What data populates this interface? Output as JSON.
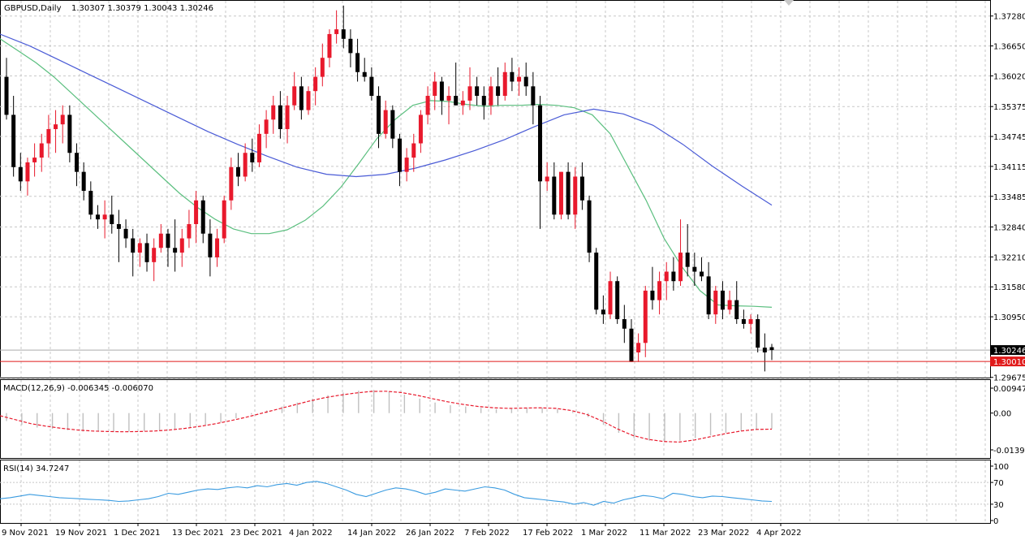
{
  "header": {
    "symbol_label": "GBPUSD,Daily",
    "ohlc_text": "1.30307 1.30379 1.30043 1.30246"
  },
  "macd_panel": {
    "label": "MACD(12,26,9) -0.006345 -0.006070"
  },
  "rsi_panel": {
    "label": "RSI(14) 34.7247"
  },
  "chart_data": {
    "type": "candlestick",
    "title": "GBPUSD,Daily",
    "x_tick_labels": [
      "9 Nov 2021",
      "19 Nov 2021",
      "1 Dec 2021",
      "13 Dec 2021",
      "23 Dec 2021",
      "4 Jan 2022",
      "14 Jan 2022",
      "26 Jan 2022",
      "7 Feb 2022",
      "17 Feb 2022",
      "1 Mar 2022",
      "11 Mar 2022",
      "23 Mar 2022",
      "4 Apr 2022"
    ],
    "price_axis": {
      "ylim": [
        1.2967,
        1.376
      ],
      "tick_labels": [
        "1.37280",
        "1.36650",
        "1.36020",
        "1.35375",
        "1.34745",
        "1.34115",
        "1.33485",
        "1.32840",
        "1.32210",
        "1.31580",
        "1.30950",
        "1.29675"
      ],
      "current_price_tag": "1.30246",
      "horizontal_line_tag": "1.30010",
      "horizontal_line_value": 1.3001
    },
    "candles_ohlc": [
      [
        1.36,
        1.364,
        1.351,
        1.352
      ],
      [
        1.352,
        1.356,
        1.339,
        1.341
      ],
      [
        1.341,
        1.344,
        1.336,
        1.338
      ],
      [
        1.338,
        1.343,
        1.335,
        1.342
      ],
      [
        1.342,
        1.346,
        1.339,
        1.343
      ],
      [
        1.343,
        1.348,
        1.34,
        1.346
      ],
      [
        1.346,
        1.352,
        1.343,
        1.349
      ],
      [
        1.349,
        1.353,
        1.344,
        1.35
      ],
      [
        1.35,
        1.354,
        1.346,
        1.352
      ],
      [
        1.352,
        1.354,
        1.342,
        1.344
      ],
      [
        1.344,
        1.346,
        1.337,
        1.34
      ],
      [
        1.34,
        1.342,
        1.334,
        1.336
      ],
      [
        1.336,
        1.338,
        1.33,
        1.331
      ],
      [
        1.331,
        1.333,
        1.328,
        1.33
      ],
      [
        1.33,
        1.334,
        1.326,
        1.331
      ],
      [
        1.331,
        1.335,
        1.327,
        1.329
      ],
      [
        1.329,
        1.332,
        1.321,
        1.328
      ],
      [
        1.328,
        1.33,
        1.324,
        1.326
      ],
      [
        1.326,
        1.328,
        1.318,
        1.323
      ],
      [
        1.323,
        1.326,
        1.32,
        1.325
      ],
      [
        1.325,
        1.327,
        1.319,
        1.321
      ],
      [
        1.321,
        1.326,
        1.317,
        1.324
      ],
      [
        1.324,
        1.329,
        1.323,
        1.327
      ],
      [
        1.327,
        1.328,
        1.32,
        1.324
      ],
      [
        1.324,
        1.33,
        1.319,
        1.323
      ],
      [
        1.323,
        1.328,
        1.32,
        1.326
      ],
      [
        1.326,
        1.332,
        1.324,
        1.329
      ],
      [
        1.329,
        1.336,
        1.325,
        1.334
      ],
      [
        1.334,
        1.335,
        1.325,
        1.327
      ],
      [
        1.327,
        1.33,
        1.318,
        1.322
      ],
      [
        1.322,
        1.328,
        1.32,
        1.326
      ],
      [
        1.326,
        1.335,
        1.325,
        1.334
      ],
      [
        1.334,
        1.343,
        1.332,
        1.341
      ],
      [
        1.341,
        1.344,
        1.337,
        1.339
      ],
      [
        1.339,
        1.346,
        1.338,
        1.344
      ],
      [
        1.344,
        1.347,
        1.34,
        1.342
      ],
      [
        1.342,
        1.35,
        1.341,
        1.348
      ],
      [
        1.348,
        1.353,
        1.345,
        1.351
      ],
      [
        1.351,
        1.356,
        1.348,
        1.354
      ],
      [
        1.354,
        1.357,
        1.347,
        1.349
      ],
      [
        1.349,
        1.356,
        1.346,
        1.354
      ],
      [
        1.354,
        1.361,
        1.353,
        1.358
      ],
      [
        1.358,
        1.36,
        1.351,
        1.353
      ],
      [
        1.353,
        1.358,
        1.352,
        1.357
      ],
      [
        1.357,
        1.362,
        1.354,
        1.36
      ],
      [
        1.36,
        1.367,
        1.358,
        1.364
      ],
      [
        1.364,
        1.37,
        1.362,
        1.369
      ],
      [
        1.369,
        1.374,
        1.367,
        1.37
      ],
      [
        1.37,
        1.375,
        1.366,
        1.368
      ],
      [
        1.368,
        1.37,
        1.362,
        1.365
      ],
      [
        1.365,
        1.368,
        1.359,
        1.361
      ],
      [
        1.361,
        1.364,
        1.359,
        1.36
      ],
      [
        1.36,
        1.362,
        1.355,
        1.356
      ],
      [
        1.356,
        1.358,
        1.345,
        1.348
      ],
      [
        1.348,
        1.355,
        1.347,
        1.353
      ],
      [
        1.353,
        1.354,
        1.345,
        1.347
      ],
      [
        1.347,
        1.348,
        1.337,
        1.34
      ],
      [
        1.34,
        1.345,
        1.338,
        1.343
      ],
      [
        1.343,
        1.348,
        1.34,
        1.346
      ],
      [
        1.346,
        1.353,
        1.344,
        1.352
      ],
      [
        1.352,
        1.358,
        1.35,
        1.356
      ],
      [
        1.356,
        1.361,
        1.353,
        1.359
      ],
      [
        1.359,
        1.36,
        1.352,
        1.355
      ],
      [
        1.355,
        1.358,
        1.35,
        1.356
      ],
      [
        1.356,
        1.363,
        1.354,
        1.354
      ],
      [
        1.354,
        1.357,
        1.352,
        1.355
      ],
      [
        1.355,
        1.362,
        1.353,
        1.358
      ],
      [
        1.358,
        1.36,
        1.354,
        1.356
      ],
      [
        1.356,
        1.358,
        1.351,
        1.354
      ],
      [
        1.354,
        1.36,
        1.352,
        1.358
      ],
      [
        1.358,
        1.362,
        1.354,
        1.356
      ],
      [
        1.356,
        1.363,
        1.355,
        1.361
      ],
      [
        1.361,
        1.364,
        1.357,
        1.359
      ],
      [
        1.359,
        1.362,
        1.356,
        1.36
      ],
      [
        1.36,
        1.363,
        1.356,
        1.358
      ],
      [
        1.358,
        1.361,
        1.35,
        1.354
      ],
      [
        1.354,
        1.356,
        1.328,
        1.338
      ],
      [
        1.338,
        1.342,
        1.336,
        1.339
      ],
      [
        1.339,
        1.342,
        1.33,
        1.331
      ],
      [
        1.331,
        1.34,
        1.33,
        1.34
      ],
      [
        1.34,
        1.342,
        1.33,
        1.331
      ],
      [
        1.331,
        1.341,
        1.328,
        1.339
      ],
      [
        1.339,
        1.342,
        1.332,
        1.334
      ],
      [
        1.334,
        1.335,
        1.321,
        1.323
      ],
      [
        1.323,
        1.324,
        1.31,
        1.311
      ],
      [
        1.311,
        1.314,
        1.308,
        1.31
      ],
      [
        1.31,
        1.319,
        1.309,
        1.317
      ],
      [
        1.317,
        1.318,
        1.308,
        1.309
      ],
      [
        1.309,
        1.312,
        1.304,
        1.307
      ],
      [
        1.307,
        1.309,
        1.3,
        1.3
      ],
      [
        1.302,
        1.306,
        1.3,
        1.304
      ],
      [
        1.304,
        1.316,
        1.301,
        1.315
      ],
      [
        1.315,
        1.32,
        1.311,
        1.313
      ],
      [
        1.313,
        1.319,
        1.31,
        1.317
      ],
      [
        1.317,
        1.321,
        1.313,
        1.319
      ],
      [
        1.319,
        1.322,
        1.315,
        1.317
      ],
      [
        1.317,
        1.33,
        1.316,
        1.323
      ],
      [
        1.323,
        1.329,
        1.318,
        1.32
      ],
      [
        1.32,
        1.323,
        1.316,
        1.319
      ],
      [
        1.319,
        1.322,
        1.317,
        1.318
      ],
      [
        1.318,
        1.321,
        1.309,
        1.31
      ],
      [
        1.31,
        1.316,
        1.308,
        1.315
      ],
      [
        1.315,
        1.317,
        1.309,
        1.311
      ],
      [
        1.311,
        1.315,
        1.31,
        1.313
      ],
      [
        1.313,
        1.317,
        1.308,
        1.309
      ],
      [
        1.309,
        1.311,
        1.307,
        1.308
      ],
      [
        1.308,
        1.31,
        1.306,
        1.309
      ],
      [
        1.309,
        1.31,
        1.302,
        1.303
      ],
      [
        1.303,
        1.306,
        1.298,
        1.302
      ],
      [
        1.3031,
        1.3038,
        1.3004,
        1.3025
      ]
    ],
    "ma_fast": [
      1.368,
      1.3655,
      1.363,
      1.36,
      1.3565,
      1.353,
      1.3495,
      1.346,
      1.3425,
      1.339,
      1.3355,
      1.3325,
      1.33,
      1.328,
      1.327,
      1.327,
      1.3278,
      1.3298,
      1.3328,
      1.3368,
      1.3418,
      1.347,
      1.351,
      1.354,
      1.355,
      1.3548,
      1.3542,
      1.3538,
      1.354,
      1.354,
      1.3542,
      1.354,
      1.3535,
      1.352,
      1.348,
      1.341,
      1.334,
      1.326,
      1.32,
      1.315,
      1.312,
      1.3118,
      1.3117,
      1.3115
    ],
    "ma_slow": [
      1.369,
      1.3665,
      1.3635,
      1.3605,
      1.3575,
      1.3545,
      1.3515,
      1.3485,
      1.3458,
      1.3433,
      1.341,
      1.3395,
      1.339,
      1.3395,
      1.3408,
      1.3425,
      1.3445,
      1.3468,
      1.3495,
      1.352,
      1.3532,
      1.3522,
      1.3498,
      1.3458,
      1.3412,
      1.337,
      1.333
    ],
    "macd": {
      "ylim": [
        -0.01397,
        0.009472
      ],
      "tick_labels": [
        "0.009472",
        "0.00",
        "-0.01397"
      ],
      "histogram": [
        -0.003,
        -0.0045,
        -0.0055,
        -0.006,
        -0.0065,
        -0.007,
        -0.007,
        -0.0072,
        -0.007,
        -0.0068,
        -0.0065,
        -0.006,
        -0.0055,
        -0.0045,
        -0.0035,
        -0.002,
        -0.0005,
        0.001,
        0.0025,
        0.004,
        0.0055,
        0.0068,
        0.0078,
        0.0085,
        0.0088,
        0.0082,
        0.007,
        0.0055,
        0.004,
        0.003,
        0.0025,
        0.002,
        0.0015,
        0.0018,
        0.002,
        0.002,
        0.0015,
        0.0005,
        -0.0015,
        -0.0045,
        -0.0075,
        -0.0095,
        -0.0105,
        -0.011,
        -0.0105,
        -0.0095,
        -0.0085,
        -0.0075,
        -0.0068,
        -0.0063,
        -0.006
      ],
      "signal": [
        -0.001,
        -0.0025,
        -0.004,
        -0.005,
        -0.0058,
        -0.0064,
        -0.0068,
        -0.007,
        -0.0071,
        -0.007,
        -0.0068,
        -0.0064,
        -0.0058,
        -0.005,
        -0.004,
        -0.0028,
        -0.0015,
        0.0,
        0.0015,
        0.003,
        0.0045,
        0.0058,
        0.0068,
        0.0076,
        0.0082,
        0.0083,
        0.0078,
        0.0068,
        0.0055,
        0.0043,
        0.0033,
        0.0025,
        0.002,
        0.0018,
        0.0019,
        0.002,
        0.0018,
        0.001,
        -0.0005,
        -0.003,
        -0.006,
        -0.0085,
        -0.01,
        -0.0108,
        -0.011,
        -0.0102,
        -0.009,
        -0.0078,
        -0.0068,
        -0.0062,
        -0.0061
      ]
    },
    "rsi": {
      "ylim": [
        0,
        100
      ],
      "tick_labels": [
        "100",
        "70",
        "30",
        "0"
      ],
      "levels": [
        70,
        30
      ],
      "values": [
        40,
        42,
        45,
        48,
        46,
        44,
        42,
        41,
        40,
        39,
        38,
        37,
        35,
        36,
        38,
        40,
        44,
        50,
        48,
        52,
        56,
        58,
        57,
        60,
        62,
        60,
        64,
        62,
        66,
        68,
        65,
        70,
        72,
        68,
        62,
        56,
        48,
        44,
        50,
        56,
        60,
        58,
        54,
        48,
        52,
        58,
        56,
        54,
        58,
        62,
        60,
        56,
        48,
        42,
        40,
        38,
        36,
        34,
        30,
        33,
        28,
        35,
        32,
        38,
        42,
        46,
        44,
        40,
        50,
        48,
        44,
        42,
        45,
        44,
        42,
        40,
        38,
        36,
        35
      ]
    }
  },
  "colors": {
    "bull_candle": "#e8192c",
    "bear_candle": "#000000",
    "ma_fast": "#5bbf7f",
    "ma_slow": "#4a5bd6",
    "horizontal_line": "#e11b1b",
    "macd_signal": "#e8192c",
    "macd_histogram": "#c0c0c0",
    "rsi_line": "#3a9be0",
    "grid": "#c8c8c8"
  }
}
